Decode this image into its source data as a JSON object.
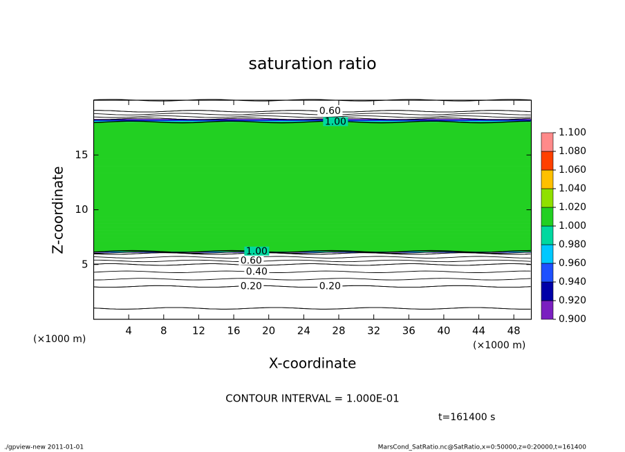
{
  "chart_data": {
    "type": "contour",
    "title": "saturation ratio",
    "x_label": "X-coordinate",
    "y_label": "Z-coordinate",
    "x_unit": "(×1000 m)",
    "xlim": [
      0,
      50
    ],
    "xticks": [
      4,
      8,
      12,
      16,
      20,
      24,
      28,
      32,
      36,
      40,
      44,
      48
    ],
    "ylim": [
      0,
      20
    ],
    "yticks": [
      5,
      10,
      15
    ],
    "profile": {
      "z": [
        0,
        1,
        2,
        3,
        4,
        5,
        5.5,
        6,
        6.2,
        10,
        18,
        18.3,
        18.6,
        19,
        19.5,
        20
      ],
      "values": [
        0.05,
        0.1,
        0.15,
        0.2,
        0.35,
        0.5,
        0.65,
        0.8,
        1.005,
        1.005,
        1.005,
        0.9,
        0.75,
        0.6,
        0.55,
        0.5
      ]
    },
    "contour_levels": [
      0.1,
      0.2,
      0.3,
      0.4,
      0.5,
      0.6,
      0.7,
      0.8,
      0.9,
      1.0
    ],
    "contour_labels": [
      {
        "value": 0.2,
        "label": "0.20"
      },
      {
        "value": 0.4,
        "label": "0.40"
      },
      {
        "value": 0.6,
        "label": "0.60"
      },
      {
        "value": 1.0,
        "label": "1.00"
      }
    ],
    "colorbar": {
      "ticks": [
        {
          "value": 0.9,
          "label": "0.900"
        },
        {
          "value": 0.92,
          "label": "0.920"
        },
        {
          "value": 0.94,
          "label": "0.940"
        },
        {
          "value": 0.96,
          "label": "0.960"
        },
        {
          "value": 0.98,
          "label": "0.980"
        },
        {
          "value": 1.0,
          "label": "1.000"
        },
        {
          "value": 1.02,
          "label": "1.020"
        },
        {
          "value": 1.04,
          "label": "1.040"
        },
        {
          "value": 1.06,
          "label": "1.060"
        },
        {
          "value": 1.08,
          "label": "1.080"
        },
        {
          "value": 1.1,
          "label": "1.100"
        }
      ],
      "colors": [
        "#7a1fc0",
        "#0000a8",
        "#1e50ff",
        "#00c8ff",
        "#00d8a0",
        "#22d022",
        "#90e000",
        "#ffc000",
        "#ff4000",
        "#ff8a8a"
      ]
    },
    "contour_note": "CONTOUR INTERVAL = 1.000E-01",
    "time_label": "t=161400 s",
    "footer_left": "./gpview-new  2011-01-01",
    "footer_right": "MarsCond_SatRatio.nc@SatRatio,x=0:50000,z=0:20000,t=161400"
  }
}
